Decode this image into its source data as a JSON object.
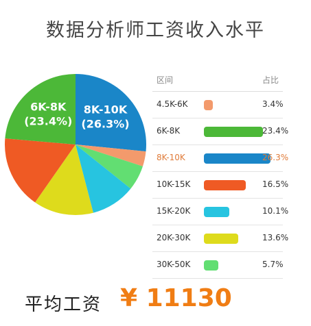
{
  "title": "数据分析师工资收入水平",
  "table": {
    "col_range": "区间",
    "col_share": "占比",
    "highlight_index": 2
  },
  "footer": {
    "label": "平均工资",
    "value": "¥ 11130"
  },
  "chart_data": {
    "type": "pie",
    "title": "数据分析师工资收入水平",
    "categories": [
      "4.5K-6K",
      "6K-8K",
      "8K-10K",
      "10K-15K",
      "15K-20K",
      "20K-30K",
      "30K-50K"
    ],
    "values": [
      3.4,
      23.4,
      26.3,
      16.5,
      10.1,
      13.6,
      5.7
    ],
    "value_labels": [
      "3.4%",
      "23.4%",
      "26.3%",
      "16.5%",
      "10.1%",
      "13.6%",
      "5.7%"
    ],
    "pie_labels": [
      {
        "index": 1,
        "line1": "6K-8K",
        "line2": "(23.4%)"
      },
      {
        "index": 2,
        "line1": "8K-10K",
        "line2": "(26.3%)"
      }
    ],
    "colors": [
      "#f39a6c",
      "#4cb838",
      "#1a86c8",
      "#ef5a24",
      "#27c4e0",
      "#dedb1c",
      "#62de72"
    ],
    "legend": "right-table"
  }
}
